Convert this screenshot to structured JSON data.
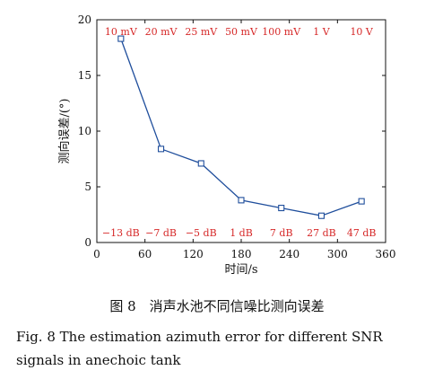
{
  "chart_data": {
    "type": "line",
    "xlabel": "时间/s",
    "ylabel": "测向误差/(°)",
    "xlim": [
      0,
      360
    ],
    "ylim": [
      0,
      20
    ],
    "xticks": [
      "0",
      "60",
      "120",
      "180",
      "240",
      "300",
      "360"
    ],
    "yticks": [
      "0",
      "5",
      "10",
      "15",
      "20"
    ],
    "grid": false,
    "line_color": "#1f4e9c",
    "label_color": "#d62828",
    "series": [
      {
        "x": [
          30,
          80,
          130,
          180,
          230,
          280,
          330
        ],
        "y": [
          18.3,
          8.4,
          7.1,
          3.8,
          3.1,
          2.4,
          3.7
        ]
      }
    ],
    "top_labels": [
      "10 mV",
      "20 mV",
      "25 mV",
      "50 mV",
      "100 mV",
      "1 V",
      "10 V"
    ],
    "bottom_labels": [
      "−13 dB",
      "−7 dB",
      "−5 dB",
      "1 dB",
      "7 dB",
      "27 dB",
      "47 dB"
    ]
  },
  "caption": {
    "chinese": "图 8　消声水池不同信噪比测向误差",
    "english": "Fig. 8  The estimation azimuth error for different SNR signals in anechoic tank"
  }
}
